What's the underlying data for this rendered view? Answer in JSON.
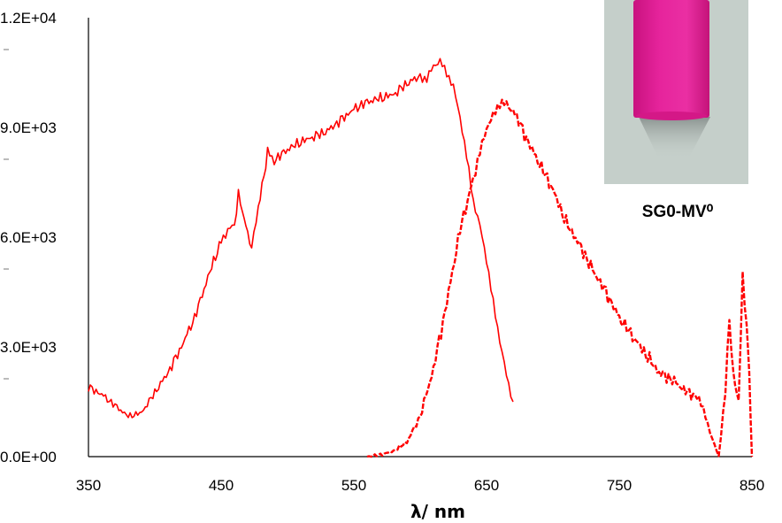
{
  "chart_data": {
    "type": "line",
    "xlabel": "λ/ nm",
    "ylabel": "",
    "xlim": [
      350,
      850
    ],
    "ylim": [
      0,
      12000
    ],
    "x_ticks": [
      "350",
      "450",
      "550",
      "650",
      "750",
      "850"
    ],
    "y_ticks": [
      "0.0E+00",
      "3.0E+03",
      "6.0E+03",
      "9.0E+03",
      "1.2E+04"
    ],
    "grid": false,
    "legend": "none",
    "series": [
      {
        "style": "solid",
        "color": "#ff0000",
        "x": [
          350,
          360,
          370,
          380,
          390,
          400,
          410,
          420,
          430,
          440,
          450,
          455,
          460,
          463,
          466,
          470,
          473,
          478,
          485,
          490,
          500,
          510,
          520,
          530,
          540,
          550,
          560,
          570,
          580,
          590,
          600,
          605,
          610,
          615,
          620,
          625,
          630,
          635,
          640,
          645,
          650,
          655,
          660,
          665,
          670
        ],
        "y": [
          1900,
          1700,
          1400,
          1100,
          1200,
          1750,
          2300,
          3000,
          3800,
          4900,
          5900,
          6200,
          6300,
          7200,
          6700,
          6100,
          5700,
          6800,
          8300,
          8100,
          8400,
          8600,
          8750,
          8900,
          9200,
          9500,
          9700,
          9800,
          9900,
          10200,
          10400,
          10300,
          10700,
          10800,
          10500,
          10100,
          9300,
          8200,
          7000,
          6300,
          5400,
          4200,
          3200,
          2200,
          1500
        ]
      },
      {
        "style": "dashed",
        "color": "#ff0000",
        "x": [
          560,
          570,
          580,
          590,
          600,
          610,
          620,
          630,
          640,
          645,
          650,
          655,
          660,
          665,
          670,
          680,
          690,
          700,
          710,
          720,
          730,
          740,
          750,
          760,
          770,
          780,
          790,
          800,
          810,
          815,
          820,
          825,
          830,
          833,
          836,
          840,
          843,
          846,
          848,
          850
        ],
        "y": [
          0,
          50,
          150,
          400,
          1100,
          2400,
          4200,
          6200,
          7600,
          8300,
          9000,
          9300,
          9700,
          9600,
          9500,
          8700,
          8000,
          7300,
          6400,
          5800,
          5100,
          4500,
          3800,
          3300,
          2800,
          2300,
          2100,
          1800,
          1600,
          1100,
          500,
          0,
          1800,
          3800,
          2200,
          1500,
          5000,
          3500,
          2300,
          0
        ]
      }
    ]
  },
  "photo": {
    "label": "SG0-MV⁰",
    "background_color": "#c5cfca",
    "sample_color": "#e21a94"
  },
  "colors": {
    "series": "#ff0000",
    "axis": "#000000"
  }
}
